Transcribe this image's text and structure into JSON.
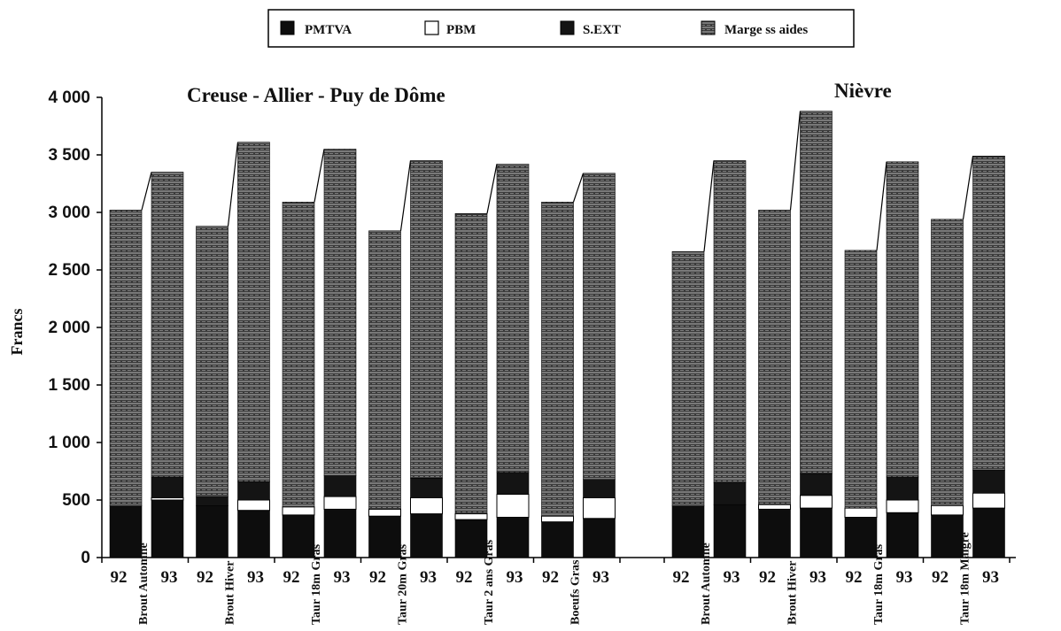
{
  "chart_data": {
    "type": "bar",
    "stacked": true,
    "ylabel": "Francs",
    "ylim": [
      0,
      4000
    ],
    "yticks": [
      "0",
      "500",
      "1 000",
      "1 500",
      "2 000",
      "2 500",
      "3 000",
      "3 500",
      "4 000"
    ],
    "ytick_values": [
      0,
      500,
      1000,
      1500,
      2000,
      2500,
      3000,
      3500,
      4000
    ],
    "legend": [
      {
        "name": "PMTVA",
        "color": "#0d0d0d",
        "pattern": "solid"
      },
      {
        "name": "PBM",
        "color": "#ffffff",
        "pattern": "outline"
      },
      {
        "name": "S.EXT",
        "color": "#141414",
        "pattern": "solid"
      },
      {
        "name": "Marge ss aides",
        "color": "#4a4a4a",
        "pattern": "hatched"
      }
    ],
    "groups": [
      {
        "title": "Creuse - Allier - Puy de Dôme",
        "categories": [
          {
            "name": "Brout Automne",
            "bars": [
              {
                "year": "92",
                "values": [
                  450,
                  0,
                  0,
                  2570
                ]
              },
              {
                "year": "93",
                "values": [
                  500,
                  20,
                  180,
                  2650
                ]
              }
            ]
          },
          {
            "name": "Brout Hiver",
            "bars": [
              {
                "year": "92",
                "values": [
                  450,
                  0,
                  80,
                  2350
                ]
              },
              {
                "year": "93",
                "values": [
                  410,
                  90,
                  160,
                  2950
                ]
              }
            ]
          },
          {
            "name": "Taur 18m Gras",
            "bars": [
              {
                "year": "92",
                "values": [
                  370,
                  70,
                  0,
                  2650
                ]
              },
              {
                "year": "93",
                "values": [
                  420,
                  110,
                  180,
                  2840
                ]
              }
            ]
          },
          {
            "name": "Taur 20m Gras",
            "bars": [
              {
                "year": "92",
                "values": [
                  360,
                  60,
                  0,
                  2420
                ]
              },
              {
                "year": "93",
                "values": [
                  380,
                  140,
                  170,
                  2760
                ]
              }
            ]
          },
          {
            "name": "Taur 2 ans Gras",
            "bars": [
              {
                "year": "92",
                "values": [
                  330,
                  50,
                  0,
                  2610
                ]
              },
              {
                "year": "93",
                "values": [
                  350,
                  200,
                  190,
                  2680
                ]
              }
            ]
          },
          {
            "name": "Boeufs Gras",
            "bars": [
              {
                "year": "92",
                "values": [
                  310,
                  50,
                  0,
                  2730
                ]
              },
              {
                "year": "93",
                "values": [
                  340,
                  180,
                  160,
                  2660
                ]
              }
            ]
          }
        ]
      },
      {
        "title": "Nièvre",
        "categories": [
          {
            "name": "Brout Automne",
            "bars": [
              {
                "year": "92",
                "values": [
                  450,
                  0,
                  0,
                  2210
                ]
              },
              {
                "year": "93",
                "values": [
                  460,
                  0,
                  190,
                  2800
                ]
              }
            ]
          },
          {
            "name": "Brout Hiver",
            "bars": [
              {
                "year": "92",
                "values": [
                  420,
                  40,
                  0,
                  2560
                ]
              },
              {
                "year": "93",
                "values": [
                  430,
                  110,
                  190,
                  3150
                ]
              }
            ]
          },
          {
            "name": "Taur 18m Gras",
            "bars": [
              {
                "year": "92",
                "values": [
                  350,
                  80,
                  0,
                  2240
                ]
              },
              {
                "year": "93",
                "values": [
                  390,
                  110,
                  200,
                  2740
                ]
              }
            ]
          },
          {
            "name": "Taur 18m Maigre",
            "bars": [
              {
                "year": "92",
                "values": [
                  370,
                  80,
                  0,
                  2490
                ]
              },
              {
                "year": "93",
                "values": [
                  430,
                  130,
                  200,
                  2730
                ]
              }
            ]
          }
        ]
      }
    ]
  }
}
